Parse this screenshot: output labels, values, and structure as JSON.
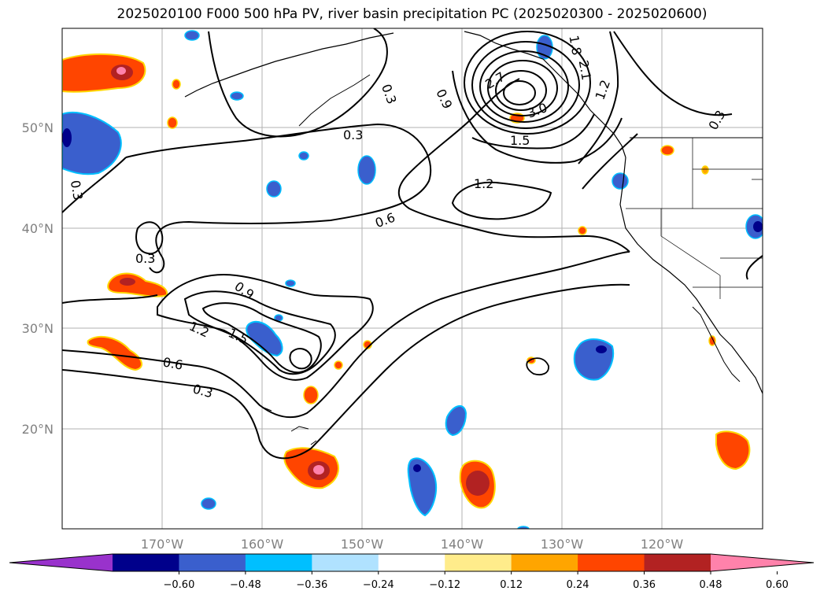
{
  "title": "2025020100 F000 500 hPa PV, river basin precipitation PC (2025020300 - 2025020600)",
  "map": {
    "lat_labels": [
      "50°N",
      "40°N",
      "30°N",
      "20°N"
    ],
    "lon_labels": [
      "170°W",
      "160°W",
      "150°W",
      "140°W",
      "130°W",
      "120°W"
    ],
    "lat_range": [
      10,
      60
    ],
    "lon_range": [
      -180,
      -110
    ],
    "gridline_color": "#b0b0b0"
  },
  "contours": {
    "line_color": "#000000",
    "labels": [
      "0.3",
      "0.3",
      "0.3",
      "0.3",
      "0.3",
      "0.3",
      "0.6",
      "0.6",
      "0.9",
      "0.9",
      "1.2",
      "1.2",
      "1.5",
      "1.5",
      "1.2",
      "1.8",
      "2.1",
      "2.7",
      "3.0"
    ]
  },
  "colorbar": {
    "colors": [
      "#9932cc",
      "#00008b",
      "#3a5fcd",
      "#00bfff",
      "#b0e2ff",
      "#ffffff",
      "#ffec8b",
      "#ffa500",
      "#ff4500",
      "#b22222",
      "#ff82ab"
    ],
    "tick_labels": [
      "−0.60",
      "−0.48",
      "−0.36",
      "−0.24",
      "−0.12",
      "0.12",
      "0.24",
      "0.36",
      "0.48",
      "0.60"
    ]
  }
}
